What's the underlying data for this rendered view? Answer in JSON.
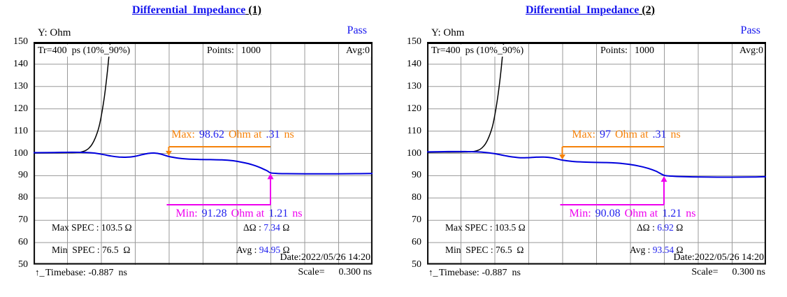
{
  "colors": {
    "accent_blue": "#1414EE",
    "value_blue": "#2222EE",
    "curve_blue": "#0000DD",
    "curve_black": "#000000",
    "max_orange": "#F5820A",
    "min_magenta": "#EE00EE",
    "grid_gray": "#999999"
  },
  "panels": [
    {
      "title": "Differential_Impedance",
      "title_suffix": " (1)",
      "y_axis_label": "Y: Ohm",
      "status": "Pass",
      "header": {
        "tr": "Tr=400  ps (10%_90%)",
        "points_label": "Points:",
        "points_value": "1000",
        "avg": "Avg:0"
      },
      "max_note": {
        "label": "Max:",
        "value": "98.62",
        "mid": "Ohm at",
        "time": ".31",
        "unit": "ns"
      },
      "min_note": {
        "label": "Min:",
        "value": "91.28",
        "mid": "Ohm at",
        "time": "1.21",
        "unit": "ns"
      },
      "specs": {
        "max_spec_label": "Max SPEC :",
        "max_spec_value": "103.5 Ω",
        "delta_label": "ΔΩ :",
        "delta_value": "7.34",
        "delta_unit": "Ω",
        "min_spec_label": "Min  SPEC :",
        "min_spec_value": "76.5  Ω",
        "avg_label": "Avg :",
        "avg_value": "94.95",
        "avg_unit": "Ω"
      },
      "date": "Date:2022/05/26 14:20",
      "footer": {
        "timebase_label": "Timebase:",
        "timebase_value": "-0.887  ns",
        "scale_label": "Scale=",
        "scale_value": "0.300 ns"
      }
    },
    {
      "title": "Differential_Impedance",
      "title_suffix": " (2)",
      "y_axis_label": "Y: Ohm",
      "status": "Pass",
      "header": {
        "tr": "Tr=400  ps (10%_90%)",
        "points_label": "Points:",
        "points_value": "1000",
        "avg": "Avg:0"
      },
      "max_note": {
        "label": "Max:",
        "value": "97",
        "mid": "Ohm at",
        "time": ".31",
        "unit": "ns"
      },
      "min_note": {
        "label": "Min:",
        "value": "90.08",
        "mid": "Ohm at",
        "time": "1.21",
        "unit": "ns"
      },
      "specs": {
        "max_spec_label": "Max SPEC :",
        "max_spec_value": "103.5 Ω",
        "delta_label": "ΔΩ :",
        "delta_value": "6.92",
        "delta_unit": "Ω",
        "min_spec_label": "Min  SPEC :",
        "min_spec_value": "76.5  Ω",
        "avg_label": "Avg :",
        "avg_value": "93.54",
        "avg_unit": "Ω"
      },
      "date": "Date:2022/05/26 14:20",
      "footer": {
        "timebase_label": "Timebase:",
        "timebase_value": "-0.887  ns",
        "scale_label": "Scale=",
        "scale_value": "0.300 ns"
      }
    }
  ],
  "chart_data": [
    {
      "type": "line",
      "title": "Differential_Impedance (1)",
      "ylabel": "Ohm",
      "ylim": [
        50,
        150
      ],
      "yticks": [
        150,
        140,
        130,
        120,
        110,
        100,
        90,
        80,
        70,
        60,
        50
      ],
      "x_start_ns": -0.887,
      "x_scale_ns_per_div": 0.3,
      "x_divisions": 10,
      "grid": true,
      "tr_ps": 400,
      "points": 1000,
      "averaging": 0,
      "result": "Pass",
      "markers": {
        "max_ohm": 98.62,
        "max_ns": 0.31,
        "min_ohm": 91.28,
        "min_ns": 1.21,
        "window_ns": [
          0.31,
          1.21
        ]
      },
      "stats": {
        "max_spec_ohm": 103.5,
        "min_spec_ohm": 76.5,
        "delta_ohm": 7.34,
        "avg_ohm": 94.95
      },
      "series": [
        {
          "name": "incident-step",
          "color": "#000000",
          "points": [
            [
              -0.887,
              100.15
            ],
            [
              -0.7,
              100.25
            ],
            [
              -0.58,
              100.3
            ],
            [
              -0.52,
              100.35
            ],
            [
              -0.47,
              100.6
            ],
            [
              -0.43,
              101.2
            ],
            [
              -0.4,
              102.2
            ],
            [
              -0.37,
              104.0
            ],
            [
              -0.34,
              107.0
            ],
            [
              -0.31,
              111.5
            ],
            [
              -0.285,
              117.5
            ],
            [
              -0.26,
              125.5
            ],
            [
              -0.235,
              136
            ],
            [
              -0.21,
              149
            ],
            [
              -0.19,
              160
            ]
          ]
        },
        {
          "name": "differential-impedance",
          "color": "#0000DD",
          "points": [
            [
              -0.887,
              100.3
            ],
            [
              -0.7,
              100.4
            ],
            [
              -0.55,
              100.5
            ],
            [
              -0.45,
              100.45
            ],
            [
              -0.36,
              100.2
            ],
            [
              -0.28,
              99.6
            ],
            [
              -0.2,
              98.8
            ],
            [
              -0.13,
              98.35
            ],
            [
              -0.06,
              98.3
            ],
            [
              0.0,
              98.6
            ],
            [
              0.07,
              99.4
            ],
            [
              0.13,
              100.0
            ],
            [
              0.18,
              100.15
            ],
            [
              0.24,
              99.7
            ],
            [
              0.31,
              98.62
            ],
            [
              0.39,
              97.9
            ],
            [
              0.47,
              97.5
            ],
            [
              0.57,
              97.3
            ],
            [
              0.68,
              97.2
            ],
            [
              0.78,
              97.1
            ],
            [
              0.88,
              96.7
            ],
            [
              0.97,
              95.9
            ],
            [
              1.05,
              94.9
            ],
            [
              1.12,
              93.6
            ],
            [
              1.18,
              92.2
            ],
            [
              1.21,
              91.3
            ],
            [
              1.27,
              91.0
            ],
            [
              1.35,
              90.9
            ],
            [
              1.55,
              90.85
            ],
            [
              1.8,
              90.85
            ],
            [
              2.0,
              90.9
            ],
            [
              2.113,
              91.0
            ]
          ]
        }
      ]
    },
    {
      "type": "line",
      "title": "Differential_Impedance (2)",
      "ylabel": "Ohm",
      "ylim": [
        50,
        150
      ],
      "yticks": [
        150,
        140,
        130,
        120,
        110,
        100,
        90,
        80,
        70,
        60,
        50
      ],
      "x_start_ns": -0.887,
      "x_scale_ns_per_div": 0.3,
      "x_divisions": 10,
      "grid": true,
      "tr_ps": 400,
      "points": 1000,
      "averaging": 0,
      "result": "Pass",
      "markers": {
        "max_ohm": 97,
        "max_ns": 0.31,
        "min_ohm": 90.08,
        "min_ns": 1.21,
        "window_ns": [
          0.31,
          1.21
        ]
      },
      "stats": {
        "max_spec_ohm": 103.5,
        "min_spec_ohm": 76.5,
        "delta_ohm": 6.92,
        "avg_ohm": 93.54
      },
      "series": [
        {
          "name": "incident-step",
          "color": "#000000",
          "points": [
            [
              -0.887,
              100.45
            ],
            [
              -0.7,
              100.55
            ],
            [
              -0.58,
              100.6
            ],
            [
              -0.52,
              100.65
            ],
            [
              -0.47,
              100.9
            ],
            [
              -0.43,
              101.5
            ],
            [
              -0.4,
              102.5
            ],
            [
              -0.37,
              104.3
            ],
            [
              -0.34,
              107.3
            ],
            [
              -0.31,
              111.8
            ],
            [
              -0.285,
              117.8
            ],
            [
              -0.26,
              125.8
            ],
            [
              -0.235,
              136
            ],
            [
              -0.21,
              149
            ],
            [
              -0.19,
              160
            ]
          ]
        },
        {
          "name": "differential-impedance",
          "color": "#0000DD",
          "points": [
            [
              -0.887,
              100.65
            ],
            [
              -0.7,
              100.8
            ],
            [
              -0.55,
              100.8
            ],
            [
              -0.45,
              100.7
            ],
            [
              -0.36,
              100.35
            ],
            [
              -0.28,
              99.8
            ],
            [
              -0.2,
              99.0
            ],
            [
              -0.13,
              98.4
            ],
            [
              -0.06,
              98.05
            ],
            [
              0.01,
              98.1
            ],
            [
              0.08,
              98.3
            ],
            [
              0.15,
              98.35
            ],
            [
              0.22,
              98.0
            ],
            [
              0.31,
              97.0
            ],
            [
              0.4,
              96.4
            ],
            [
              0.5,
              96.1
            ],
            [
              0.6,
              95.95
            ],
            [
              0.7,
              95.9
            ],
            [
              0.8,
              95.65
            ],
            [
              0.9,
              95.1
            ],
            [
              0.99,
              94.3
            ],
            [
              1.07,
              93.3
            ],
            [
              1.14,
              92.0
            ],
            [
              1.21,
              90.2
            ],
            [
              1.28,
              89.8
            ],
            [
              1.38,
              89.55
            ],
            [
              1.55,
              89.4
            ],
            [
              1.8,
              89.35
            ],
            [
              2.0,
              89.4
            ],
            [
              2.113,
              89.55
            ]
          ]
        }
      ]
    }
  ]
}
